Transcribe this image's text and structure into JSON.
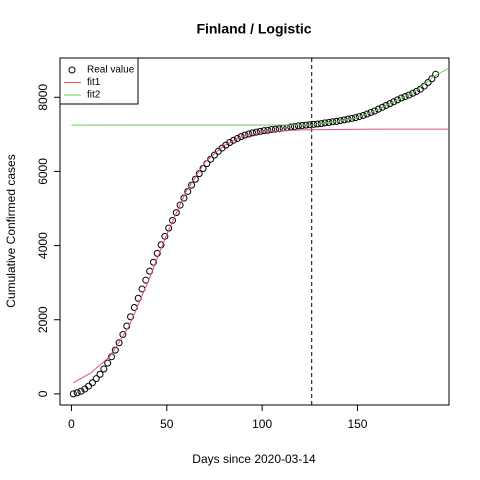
{
  "chart_data": {
    "type": "scatter_lines",
    "title": "Finland / Logistic",
    "xlabel": "Days since 2020-03-14",
    "ylabel": "Cumulative Confirmed cases",
    "xlim": [
      -6,
      198
    ],
    "ylim": [
      -300,
      9060
    ],
    "xticks": [
      0,
      50,
      100,
      150
    ],
    "yticks": [
      0,
      2000,
      4000,
      6000,
      8000
    ],
    "vline": 126,
    "legend": "top-left",
    "series": [
      {
        "name": "Real value",
        "color": "#000000",
        "marker": "circle",
        "x": [
          1,
          3,
          5,
          7,
          9,
          11,
          13,
          15,
          17,
          19,
          21,
          23,
          25,
          27,
          29,
          31,
          33,
          35,
          37,
          39,
          41,
          43,
          45,
          47,
          49,
          51,
          53,
          55,
          57,
          59,
          61,
          63,
          65,
          67,
          69,
          71,
          73,
          75,
          77,
          79,
          81,
          83,
          85,
          87,
          89,
          91,
          93,
          95,
          97,
          99,
          101,
          103,
          105,
          107,
          109,
          111,
          113,
          115,
          117,
          119,
          121,
          123,
          125,
          127,
          129,
          131,
          133,
          135,
          137,
          139,
          141,
          143,
          145,
          147,
          149,
          151,
          153,
          155,
          157,
          159,
          161,
          163,
          165,
          167,
          169,
          171,
          173,
          175,
          177,
          179,
          181,
          183,
          185,
          187,
          189,
          191
        ],
        "values": [
          0,
          30,
          70,
          130,
          210,
          300,
          410,
          530,
          670,
          830,
          1000,
          1180,
          1380,
          1600,
          1830,
          2080,
          2330,
          2580,
          2830,
          3070,
          3310,
          3550,
          3790,
          4020,
          4250,
          4470,
          4680,
          4890,
          5090,
          5280,
          5460,
          5630,
          5790,
          5940,
          6080,
          6210,
          6330,
          6440,
          6540,
          6630,
          6710,
          6780,
          6840,
          6890,
          6940,
          6980,
          7010,
          7040,
          7060,
          7080,
          7100,
          7110,
          7130,
          7140,
          7150,
          7170,
          7180,
          7200,
          7210,
          7230,
          7240,
          7250,
          7260,
          7270,
          7280,
          7290,
          7310,
          7320,
          7340,
          7350,
          7370,
          7390,
          7410,
          7430,
          7450,
          7480,
          7510,
          7550,
          7590,
          7630,
          7680,
          7730,
          7780,
          7830,
          7880,
          7930,
          7980,
          8020,
          8060,
          8110,
          8160,
          8220,
          8300,
          8400,
          8500,
          8620
        ]
      },
      {
        "name": "fit1",
        "color": "#df536b",
        "marker": "line",
        "x": [
          1,
          10,
          20,
          30,
          40,
          50,
          60,
          70,
          80,
          90,
          100,
          120,
          150,
          198
        ],
        "values": [
          300,
          560,
          1000,
          1800,
          3000,
          4300,
          5450,
          6250,
          6700,
          6950,
          7060,
          7120,
          7140,
          7143
        ]
      },
      {
        "name": "fit2",
        "color": "#61d04f",
        "marker": "line",
        "x": [
          0,
          126,
          140,
          150,
          160,
          170,
          180,
          190,
          198
        ],
        "values": [
          7250,
          7255,
          7350,
          7450,
          7650,
          7900,
          8150,
          8560,
          8790
        ]
      }
    ]
  }
}
